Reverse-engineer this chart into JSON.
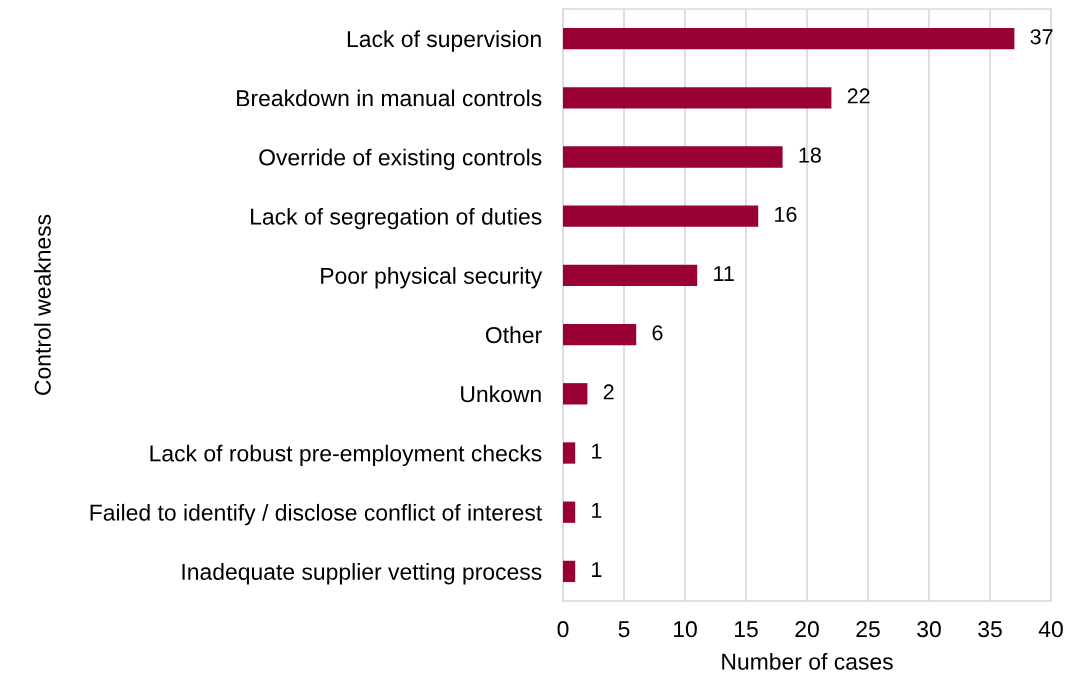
{
  "chart_data": {
    "type": "bar",
    "orientation": "horizontal",
    "xlabel": "Number of cases",
    "ylabel": "Control weakness",
    "categories": [
      "Lack of supervision",
      "Breakdown in manual controls",
      "Override of existing controls",
      "Lack of segregation of duties",
      "Poor physical security",
      "Other",
      "Unkown",
      "Lack of robust pre-employment checks",
      "Failed to identify / disclose conflict of interest",
      "Inadequate supplier vetting process"
    ],
    "values": [
      37,
      22,
      18,
      16,
      11,
      6,
      2,
      1,
      1,
      1
    ],
    "color": "#990033",
    "xlim": [
      0,
      40
    ],
    "xticks": [
      0,
      5,
      10,
      15,
      20,
      25,
      30,
      35,
      40
    ],
    "grid": "x",
    "data_labels": true
  }
}
